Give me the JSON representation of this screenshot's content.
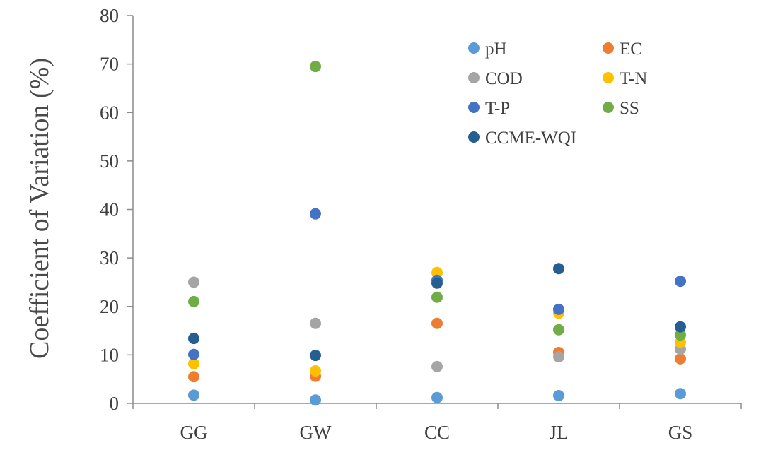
{
  "chart_data": {
    "type": "scatter",
    "title": "",
    "xlabel": "",
    "ylabel": "Coefficient of Variation (%)",
    "categories": [
      "GG",
      "GW",
      "CC",
      "JL",
      "GS"
    ],
    "ylim": [
      0,
      80
    ],
    "yticks": [
      0,
      10,
      20,
      30,
      40,
      50,
      60,
      70,
      80
    ],
    "grid": false,
    "legend_position": "top-right",
    "series": [
      {
        "name": "pH",
        "color": "#5b9bd5",
        "values": [
          1.7,
          0.7,
          1.2,
          1.6,
          2.0
        ]
      },
      {
        "name": "EC",
        "color": "#ed7d31",
        "values": [
          5.5,
          5.6,
          16.5,
          10.5,
          9.2
        ]
      },
      {
        "name": "COD",
        "color": "#a5a5a5",
        "values": [
          25.0,
          16.5,
          7.6,
          9.6,
          11.2
        ]
      },
      {
        "name": "T-N",
        "color": "#ffc000",
        "values": [
          8.2,
          6.7,
          27.0,
          18.6,
          12.6
        ]
      },
      {
        "name": "T-P",
        "color": "#4472c4",
        "values": [
          10.1,
          39.1,
          25.4,
          19.4,
          25.2
        ]
      },
      {
        "name": "SS",
        "color": "#70ad47",
        "values": [
          21.0,
          69.5,
          21.9,
          15.2,
          14.1
        ]
      },
      {
        "name": "CCME-WQI",
        "color": "#255e91",
        "values": [
          13.4,
          9.9,
          24.8,
          27.8,
          15.8
        ]
      }
    ]
  }
}
